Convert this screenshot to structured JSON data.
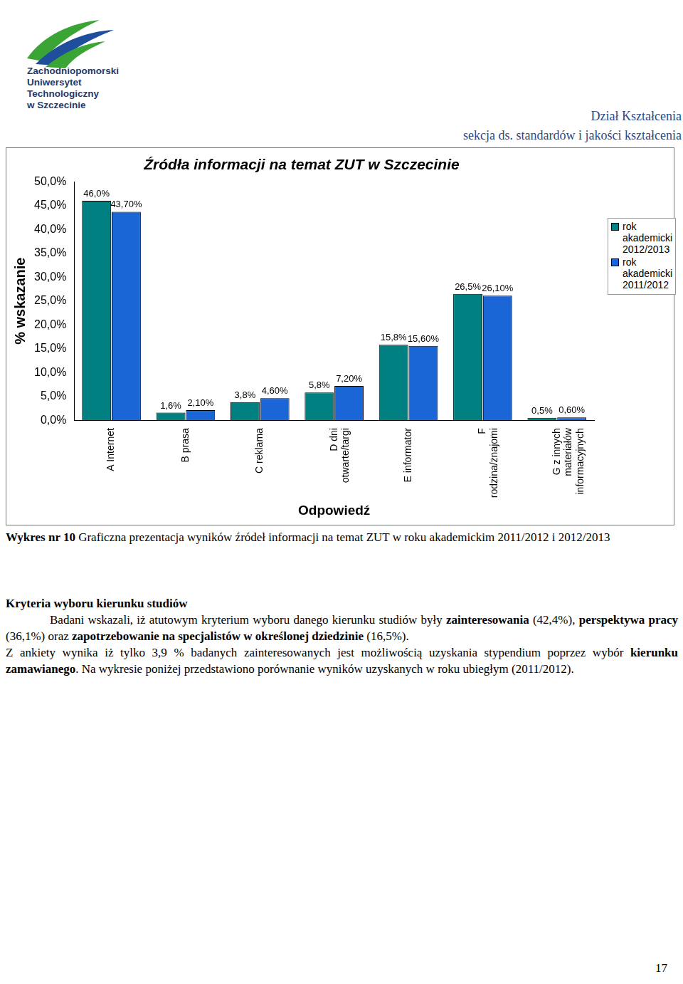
{
  "header": {
    "logo_lines": [
      "Zachodniopomorski",
      "Uniwersytet",
      "Technologiczny",
      "w Szczecinie"
    ],
    "department": "Dział Kształcenia",
    "section": "sekcja ds. standardów i jakości kształcenia"
  },
  "chart_data": {
    "type": "bar",
    "title": "Źródła informacji na temat ZUT w Szczecinie",
    "x_label": "Odpowiedź",
    "y_label": "% wskazanie",
    "categories": [
      "A Internet",
      "B prasa",
      "C reklama",
      "D dni otwarte/targi",
      "E informator",
      "F rodzina/znajomi",
      "G z innych materiałów informacyjnych"
    ],
    "series": [
      {
        "name": "rok akademicki 2012/2013",
        "color": "#008080",
        "values": [
          46.0,
          1.6,
          3.8,
          5.8,
          15.8,
          26.5,
          0.5
        ],
        "value_labels": [
          "46,0%",
          "1,6%",
          "3,8%",
          "5,8%",
          "15,8%",
          "26,5%",
          "0,5%"
        ]
      },
      {
        "name": "rok akademicki 2011/2012",
        "color": "#1a66d6",
        "values": [
          43.7,
          2.1,
          4.6,
          7.2,
          15.6,
          26.1,
          0.6
        ],
        "value_labels": [
          "43,70%",
          "2,10%",
          "4,60%",
          "7,20%",
          "15,60%",
          "26,10%",
          "0,60%"
        ]
      }
    ],
    "ylim": [
      0,
      50
    ],
    "yticks": [
      {
        "value": 0,
        "label": "0,0%"
      },
      {
        "value": 5,
        "label": "5,0%"
      },
      {
        "value": 10,
        "label": "10,0%"
      },
      {
        "value": 15,
        "label": "15,0%"
      },
      {
        "value": 20,
        "label": "20,0%"
      },
      {
        "value": 25,
        "label": "25,0%"
      },
      {
        "value": 30,
        "label": "30,0%"
      },
      {
        "value": 35,
        "label": "35,0%"
      },
      {
        "value": 40,
        "label": "40,0%"
      },
      {
        "value": 45,
        "label": "45,0%"
      },
      {
        "value": 50,
        "label": "50,0%"
      }
    ],
    "grid": false,
    "legend": "right",
    "data_labels": true
  },
  "caption": {
    "label": "Wykres nr 10",
    "text": "Graficzna prezentacja wyników źródeł informacji na temat ZUT w roku akademickim 2011/2012 i 2012/2013"
  },
  "section": {
    "heading": "Kryteria wyboru kierunku studiów",
    "paragraphs": [
      [
        {
          "text": "Badani wskazali, iż atutowym kryterium wyboru danego kierunku studiów były ",
          "bold": false
        },
        {
          "text": "zainteresowania",
          "bold": true
        },
        {
          "text": " (42,4%), ",
          "bold": false
        },
        {
          "text": "perspektywa pracy",
          "bold": true
        },
        {
          "text": " (36,1%) oraz ",
          "bold": false
        },
        {
          "text": "zapotrzebowanie na specjalistów w określonej dziedzinie",
          "bold": true
        },
        {
          "text": " (16,5%).",
          "bold": false
        }
      ],
      [
        {
          "text": "Z ankiety wynika iż tylko 3,9 % badanych zainteresowanych jest możliwością uzyskania stypendium poprzez wybór ",
          "bold": false
        },
        {
          "text": "kierunku zamawianego",
          "bold": true
        },
        {
          "text": ". Na wykresie poniżej przedstawiono porównanie wyników uzyskanych w roku ubiegłym (2011/2012).",
          "bold": false
        }
      ]
    ]
  },
  "page_number": "17"
}
